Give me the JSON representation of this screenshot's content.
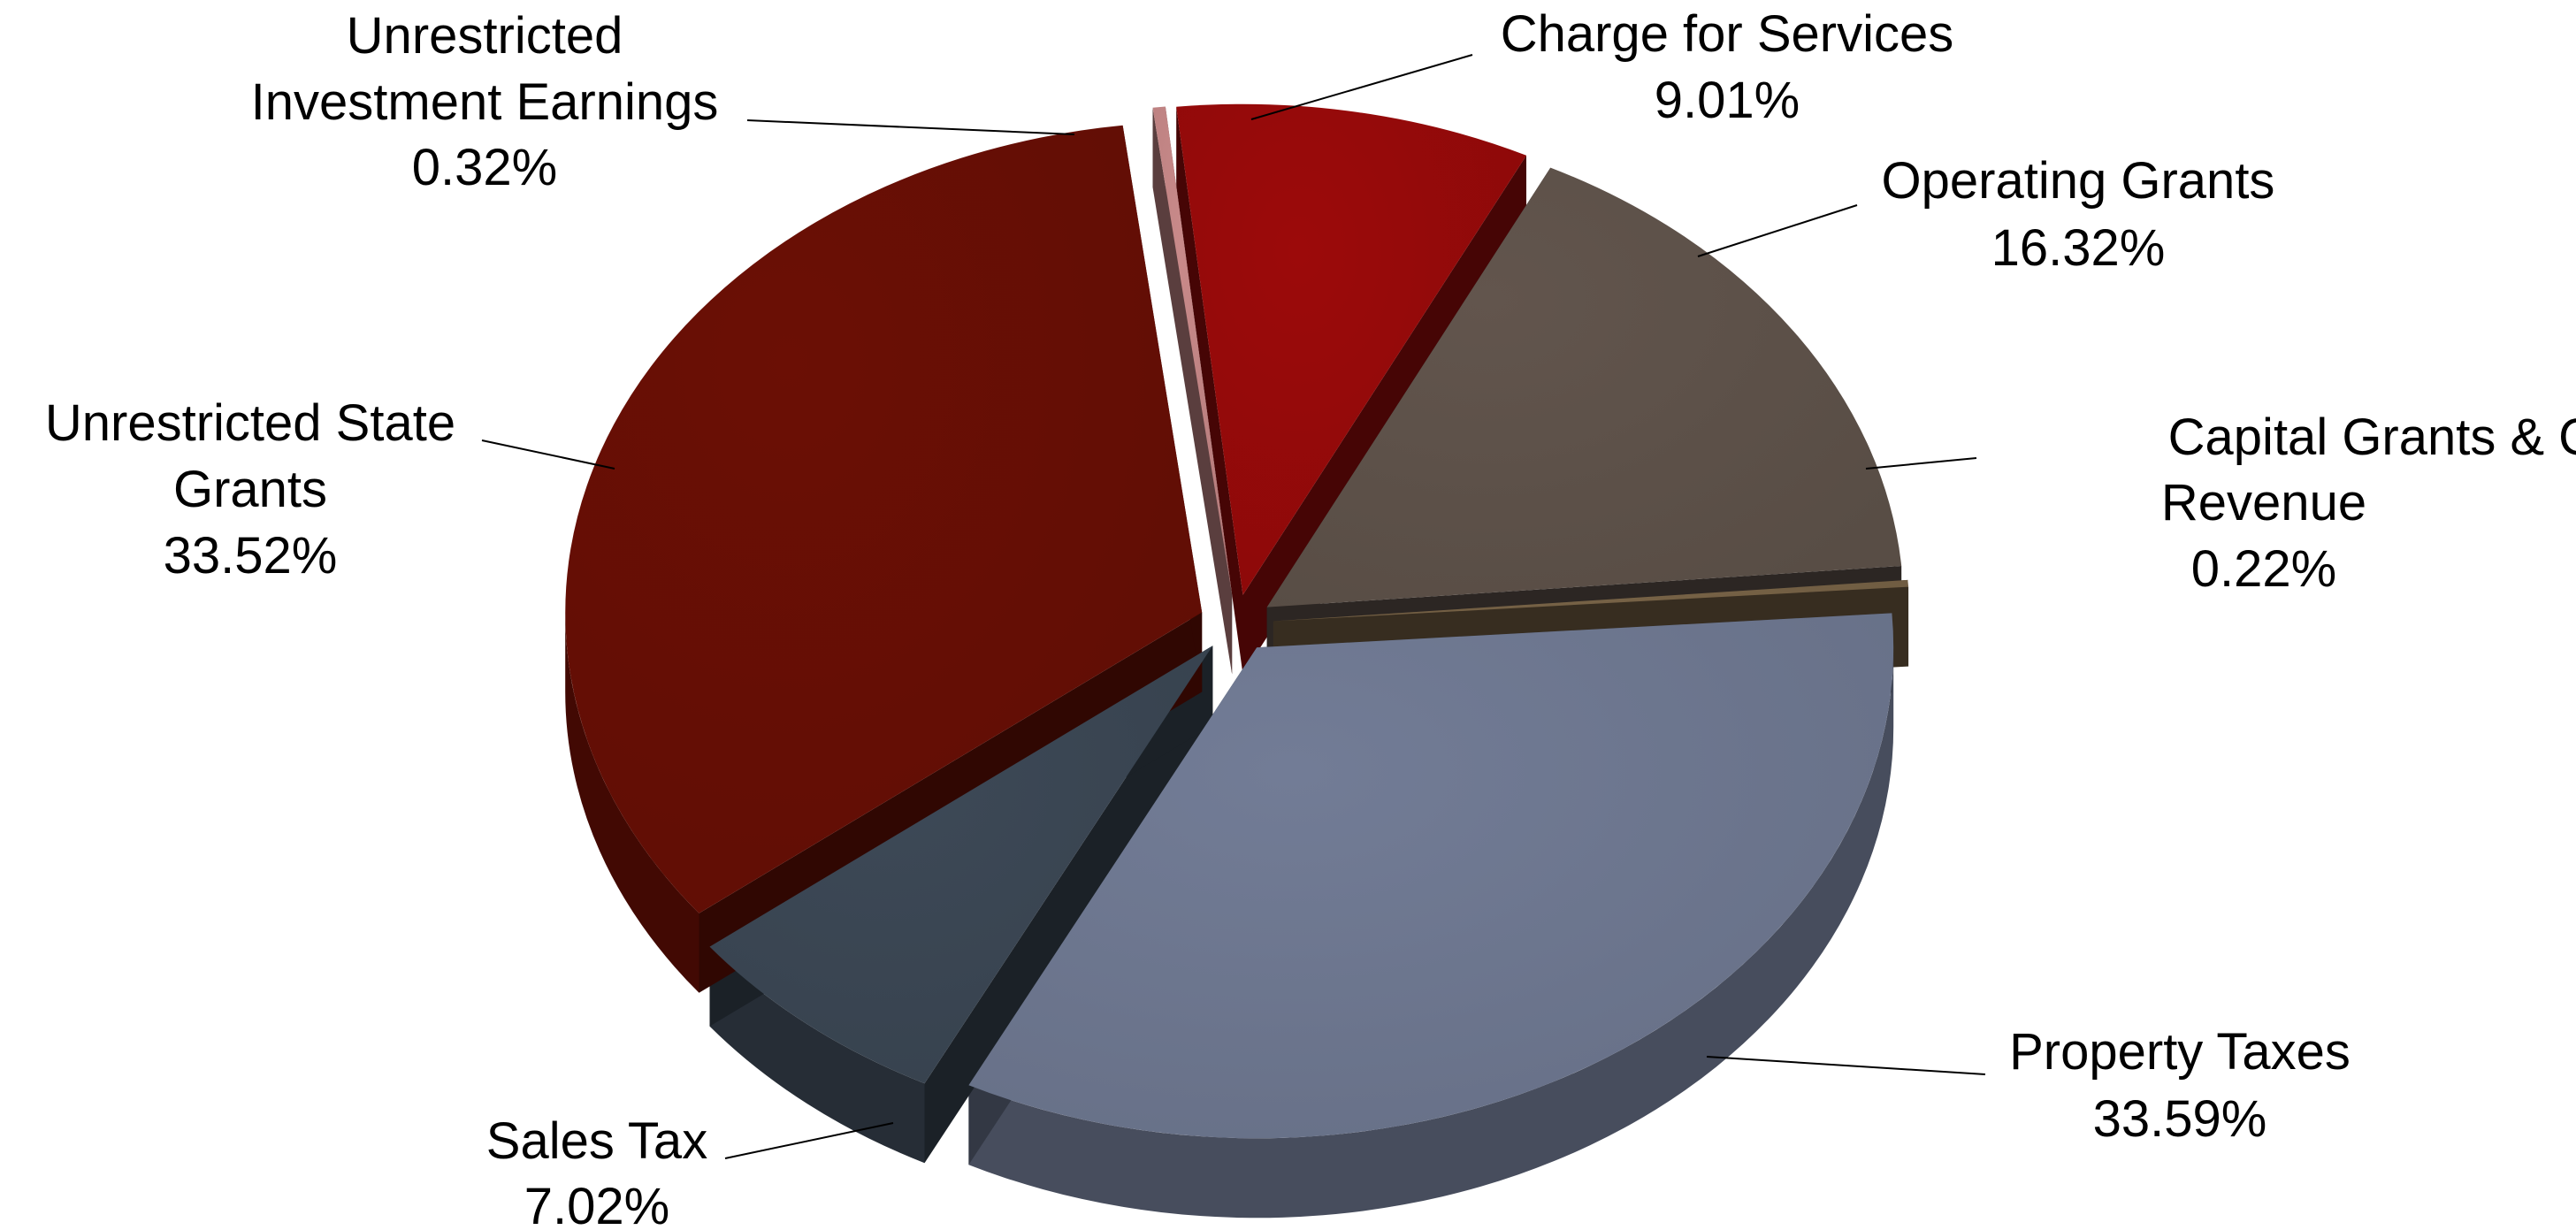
{
  "chart_data": {
    "type": "pie",
    "style": "3d-exploded",
    "slices": [
      {
        "label": "Charge for Services",
        "value_label": "9.01%",
        "value": 9.01,
        "color": "#9c0a0a"
      },
      {
        "label": "Operating Grants",
        "value_label": "16.32%",
        "value": 16.32,
        "color": "#62554d"
      },
      {
        "label": "Capital Grants & Other Revenue",
        "value_label": "0.22%",
        "value": 0.22,
        "color": "#7a6548"
      },
      {
        "label": "Property Taxes",
        "value_label": "33.59%",
        "value": 33.59,
        "color": "#727c96"
      },
      {
        "label": "Sales Tax",
        "value_label": "7.02%",
        "value": 7.02,
        "color": "#3d4957"
      },
      {
        "label": "Unrestricted State Grants",
        "value_label": "33.52%",
        "value": 33.52,
        "color": "#6b0f05"
      },
      {
        "label": "Unrestricted Investment Earnings",
        "value_label": "0.32%",
        "value": 0.32,
        "color": "#c98a8a"
      }
    ]
  }
}
